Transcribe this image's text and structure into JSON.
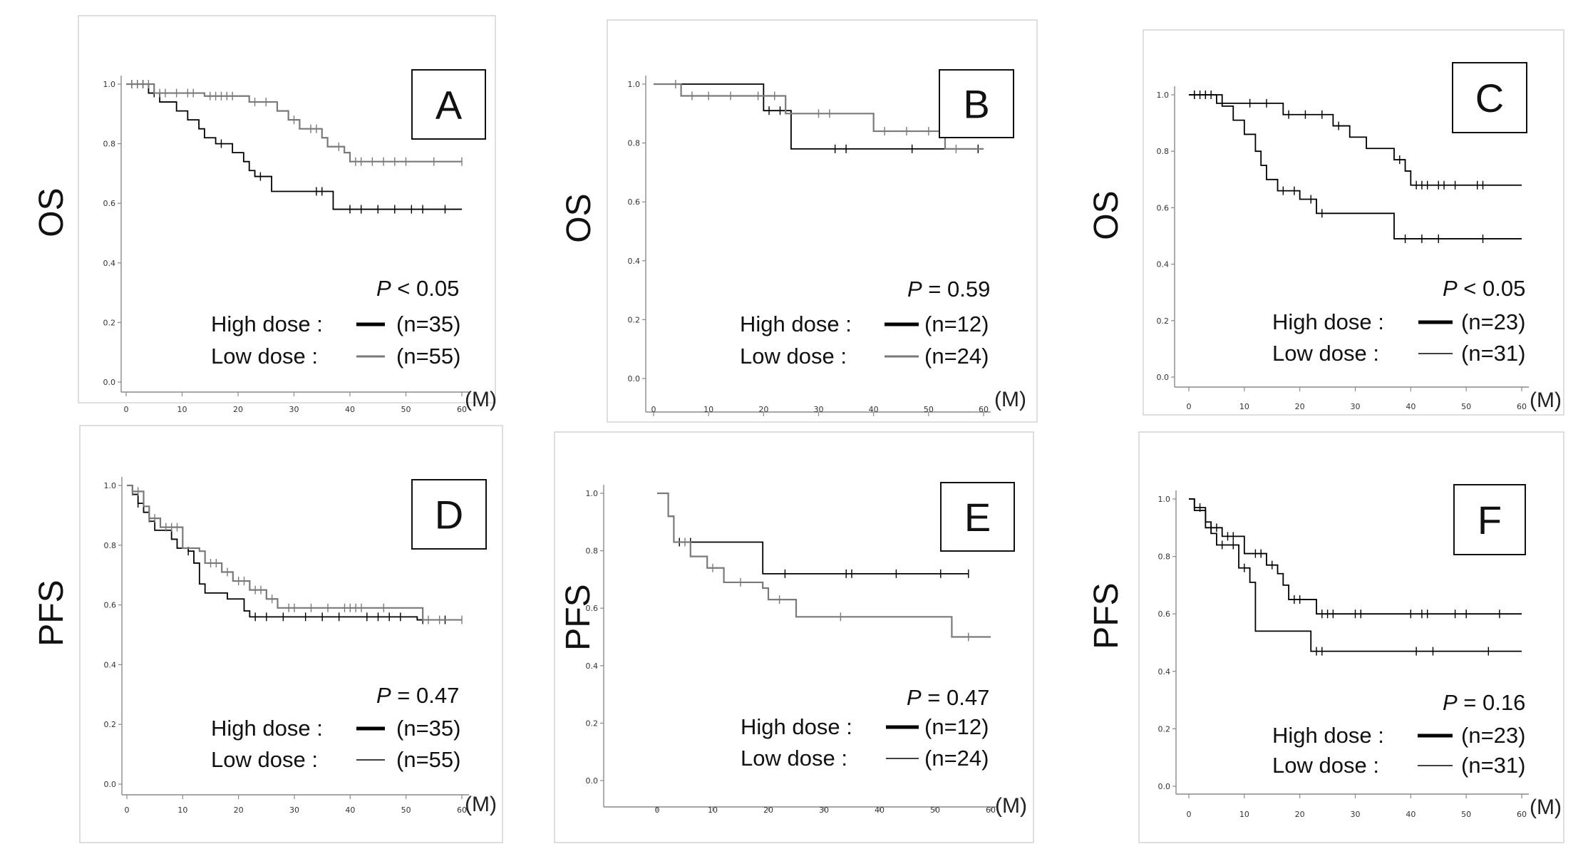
{
  "figure": {
    "panels": [
      {
        "letter": "A",
        "ylabel": "OS",
        "x_unit": "(M)",
        "p_symbol": "P",
        "p_rest": " < 0.05",
        "legend": [
          {
            "label": "High dose :",
            "count": "(n=35)",
            "color": "#000000",
            "width": 5
          },
          {
            "label": "Low dose  :",
            "count": "(n=55)",
            "color": "#7a7a7a",
            "width": 3
          }
        ]
      },
      {
        "letter": "B",
        "ylabel": "OS",
        "x_unit": "(M)",
        "p_symbol": "P",
        "p_rest": " = 0.59",
        "legend": [
          {
            "label": "High dose :",
            "count": "(n=12)",
            "color": "#000000",
            "width": 5
          },
          {
            "label": "Low dose  :",
            "count": "(n=24)",
            "color": "#7a7a7a",
            "width": 3
          }
        ]
      },
      {
        "letter": "C",
        "ylabel": "OS",
        "x_unit": "(M)",
        "p_symbol": "P",
        "p_rest": " < 0.05",
        "legend": [
          {
            "label": "High dose :",
            "count": "(n=23)",
            "color": "#000000",
            "width": 5
          },
          {
            "label": "Low dose  :",
            "count": "(n=31)",
            "color": "#000000",
            "width": 1.6
          }
        ]
      },
      {
        "letter": "D",
        "ylabel": "PFS",
        "x_unit": "(M)",
        "p_symbol": "P",
        "p_rest": " = 0.47",
        "legend": [
          {
            "label": "High dose :",
            "count": "(n=35)",
            "color": "#000000",
            "width": 5
          },
          {
            "label": "Low dose  :",
            "count": "(n=55)",
            "color": "#000000",
            "width": 1.6
          }
        ]
      },
      {
        "letter": "E",
        "ylabel": "PFS",
        "x_unit": "(M)",
        "p_symbol": "P",
        "p_rest": " = 0.47",
        "legend": [
          {
            "label": "High dose :",
            "count": "(n=12)",
            "color": "#000000",
            "width": 5
          },
          {
            "label": "Low dose  :",
            "count": "(n=24)",
            "color": "#000000",
            "width": 1.6
          }
        ]
      },
      {
        "letter": "F",
        "ylabel": "PFS",
        "x_unit": "(M)",
        "p_symbol": "P",
        "p_rest": " = 0.16",
        "legend": [
          {
            "label": "High dose :",
            "count": "(n=23)",
            "color": "#000000",
            "width": 5
          },
          {
            "label": "Low dose  :",
            "count": "(n=31)",
            "color": "#000000",
            "width": 1.6
          }
        ]
      }
    ]
  },
  "chart_data": [
    {
      "type": "line",
      "panel": "A",
      "ylabel": "OS",
      "xlabel": "(M)",
      "xlim": [
        0,
        60
      ],
      "ylim": [
        0,
        1
      ],
      "x_ticks": [
        0,
        10,
        20,
        30,
        40,
        50,
        60
      ],
      "y_ticks": [
        "0.0",
        "0.2",
        "0.4",
        "0.6",
        "0.8",
        "1.0"
      ],
      "annotation": "P < 0.05",
      "series": [
        {
          "name": "High dose (n=35)",
          "color": "#000000",
          "steps": [
            [
              0,
              1.0
            ],
            [
              4,
              0.97
            ],
            [
              6,
              0.94
            ],
            [
              9,
              0.91
            ],
            [
              11,
              0.88
            ],
            [
              13,
              0.85
            ],
            [
              14,
              0.82
            ],
            [
              16,
              0.8
            ],
            [
              19,
              0.77
            ],
            [
              21,
              0.74
            ],
            [
              22,
              0.71
            ],
            [
              23,
              0.69
            ],
            [
              26,
              0.64
            ],
            [
              37,
              0.58
            ],
            [
              60,
              0.58
            ]
          ],
          "censored": [
            1,
            2,
            3,
            5,
            17,
            24,
            34,
            35,
            40,
            42,
            45,
            48,
            51,
            53,
            57
          ]
        },
        {
          "name": "Low dose (n=55)",
          "color": "#7a7a7a",
          "steps": [
            [
              0,
              1.0
            ],
            [
              5,
              0.97
            ],
            [
              14,
              0.96
            ],
            [
              22,
              0.94
            ],
            [
              27,
              0.91
            ],
            [
              29,
              0.88
            ],
            [
              31,
              0.85
            ],
            [
              35,
              0.82
            ],
            [
              36,
              0.79
            ],
            [
              39,
              0.77
            ],
            [
              40,
              0.74
            ],
            [
              60,
              0.74
            ]
          ],
          "censored": [
            1,
            2,
            3,
            4,
            6,
            7,
            9,
            11,
            12,
            15,
            16,
            17,
            18,
            19,
            23,
            25,
            30,
            33,
            34,
            38,
            41,
            42,
            44,
            46,
            48,
            50,
            55,
            60
          ]
        }
      ]
    },
    {
      "type": "line",
      "panel": "B",
      "ylabel": "OS",
      "xlabel": "(M)",
      "xlim": [
        0,
        60
      ],
      "ylim": [
        0,
        1
      ],
      "x_ticks": [
        0,
        10,
        20,
        30,
        40,
        50,
        60
      ],
      "y_ticks": [
        "0.0",
        "0.2",
        "0.4",
        "0.6",
        "0.8",
        "1.0"
      ],
      "annotation": "P = 0.59",
      "series": [
        {
          "name": "High dose (n=12)",
          "color": "#000000",
          "steps": [
            [
              0,
              1.0
            ],
            [
              20,
              0.91
            ],
            [
              25,
              0.78
            ],
            [
              60,
              0.78
            ]
          ],
          "censored": [
            21,
            23,
            33,
            35,
            47,
            59
          ]
        },
        {
          "name": "Low dose (n=24)",
          "color": "#7a7a7a",
          "steps": [
            [
              0,
              1.0
            ],
            [
              5,
              0.96
            ],
            [
              24,
              0.9
            ],
            [
              40,
              0.84
            ],
            [
              53,
              0.78
            ],
            [
              60,
              0.78
            ]
          ],
          "censored": [
            4,
            7,
            10,
            14,
            19,
            22,
            30,
            32,
            42,
            46,
            50,
            55
          ]
        }
      ]
    },
    {
      "type": "line",
      "panel": "C",
      "ylabel": "OS",
      "xlabel": "(M)",
      "xlim": [
        0,
        60
      ],
      "ylim": [
        0,
        1
      ],
      "x_ticks": [
        0,
        10,
        20,
        30,
        40,
        50,
        60
      ],
      "y_ticks": [
        "0.0",
        "0.2",
        "0.4",
        "0.6",
        "0.8",
        "1.0"
      ],
      "annotation": "P < 0.05",
      "series": [
        {
          "name": "High dose (n=23)",
          "color": "#000000",
          "steps": [
            [
              0,
              1.0
            ],
            [
              6,
              0.96
            ],
            [
              8,
              0.91
            ],
            [
              10,
              0.86
            ],
            [
              12,
              0.8
            ],
            [
              13,
              0.75
            ],
            [
              14,
              0.7
            ],
            [
              16,
              0.66
            ],
            [
              20,
              0.63
            ],
            [
              23,
              0.58
            ],
            [
              37,
              0.49
            ],
            [
              60,
              0.49
            ]
          ],
          "censored": [
            1,
            2,
            3,
            17,
            19,
            22,
            24,
            39,
            42,
            45,
            53
          ]
        },
        {
          "name": "Low dose (n=31)",
          "color": "#000000",
          "steps": [
            [
              0,
              1.0
            ],
            [
              5,
              0.97
            ],
            [
              17,
              0.93
            ],
            [
              26,
              0.89
            ],
            [
              29,
              0.85
            ],
            [
              32,
              0.81
            ],
            [
              37,
              0.77
            ],
            [
              39,
              0.73
            ],
            [
              40,
              0.68
            ],
            [
              60,
              0.68
            ]
          ],
          "censored": [
            1,
            3,
            4,
            11,
            14,
            18,
            21,
            24,
            27,
            38,
            41,
            42,
            43,
            45,
            46,
            48,
            52,
            53
          ]
        }
      ]
    },
    {
      "type": "line",
      "panel": "D",
      "ylabel": "PFS",
      "xlabel": "(M)",
      "xlim": [
        0,
        60
      ],
      "ylim": [
        0,
        1
      ],
      "x_ticks": [
        0,
        10,
        20,
        30,
        40,
        50,
        60
      ],
      "y_ticks": [
        "0.0",
        "0.2",
        "0.4",
        "0.6",
        "0.8",
        "1.0"
      ],
      "annotation": "P = 0.47",
      "series": [
        {
          "name": "High dose (n=35)",
          "color": "#000000",
          "steps": [
            [
              0,
              1.0
            ],
            [
              1,
              0.97
            ],
            [
              2,
              0.94
            ],
            [
              3,
              0.91
            ],
            [
              4,
              0.88
            ],
            [
              5,
              0.85
            ],
            [
              8,
              0.82
            ],
            [
              9,
              0.79
            ],
            [
              11,
              0.78
            ],
            [
              12,
              0.74
            ],
            [
              13,
              0.67
            ],
            [
              14,
              0.64
            ],
            [
              18,
              0.62
            ],
            [
              21,
              0.58
            ],
            [
              22,
              0.56
            ],
            [
              52,
              0.55
            ],
            [
              60,
              0.55
            ]
          ],
          "censored": [
            2,
            11,
            23,
            25,
            28,
            32,
            35,
            38,
            43,
            45,
            47,
            49,
            53,
            57
          ]
        },
        {
          "name": "Low dose (n=55)",
          "color": "#7a7a7a",
          "steps": [
            [
              0,
              1.0
            ],
            [
              1,
              0.98
            ],
            [
              3,
              0.93
            ],
            [
              4,
              0.89
            ],
            [
              6,
              0.86
            ],
            [
              10,
              0.79
            ],
            [
              13,
              0.78
            ],
            [
              14,
              0.74
            ],
            [
              17,
              0.71
            ],
            [
              19,
              0.68
            ],
            [
              22,
              0.65
            ],
            [
              25,
              0.62
            ],
            [
              27,
              0.59
            ],
            [
              53,
              0.55
            ],
            [
              60,
              0.55
            ]
          ],
          "censored": [
            1,
            2,
            4,
            5,
            7,
            8,
            9,
            15,
            16,
            18,
            20,
            21,
            23,
            24,
            26,
            29,
            30,
            33,
            36,
            39,
            40,
            41,
            42,
            46,
            54,
            56,
            60
          ]
        }
      ]
    },
    {
      "type": "line",
      "panel": "E",
      "ylabel": "PFS",
      "xlabel": "(M)",
      "xlim": [
        0,
        60
      ],
      "ylim": [
        0,
        1
      ],
      "x_ticks": [
        0,
        10,
        20,
        30,
        40,
        50,
        60
      ],
      "y_ticks": [
        "0.0",
        "0.2",
        "0.4",
        "0.6",
        "0.8",
        "1.0"
      ],
      "annotation": "P = 0.47",
      "series": [
        {
          "name": "High dose (n=12)",
          "color": "#000000",
          "steps": [
            [
              0,
              1.0
            ],
            [
              2,
              0.92
            ],
            [
              3,
              0.83
            ],
            [
              19,
              0.72
            ],
            [
              56,
              0.72
            ]
          ],
          "censored": [
            4,
            6,
            23,
            34,
            35,
            43,
            51,
            56
          ]
        },
        {
          "name": "Low dose (n=24)",
          "color": "#7a7a7a",
          "steps": [
            [
              0,
              1.0
            ],
            [
              2,
              0.92
            ],
            [
              3,
              0.83
            ],
            [
              6,
              0.78
            ],
            [
              9,
              0.74
            ],
            [
              12,
              0.69
            ],
            [
              19,
              0.67
            ],
            [
              20,
              0.63
            ],
            [
              25,
              0.57
            ],
            [
              53,
              0.5
            ],
            [
              60,
              0.5
            ]
          ],
          "censored": [
            5,
            10,
            15,
            22,
            33,
            56
          ]
        }
      ]
    },
    {
      "type": "line",
      "panel": "F",
      "ylabel": "PFS",
      "xlabel": "(M)",
      "xlim": [
        0,
        60
      ],
      "ylim": [
        0,
        1
      ],
      "x_ticks": [
        0,
        10,
        20,
        30,
        40,
        50,
        60
      ],
      "y_ticks": [
        "0.0",
        "0.2",
        "0.4",
        "0.6",
        "0.8",
        "1.0"
      ],
      "annotation": "P = 0.16",
      "series": [
        {
          "name": "High dose (n=23)",
          "color": "#000000",
          "steps": [
            [
              0,
              1.0
            ],
            [
              1,
              0.96
            ],
            [
              3,
              0.92
            ],
            [
              4,
              0.88
            ],
            [
              5,
              0.84
            ],
            [
              9,
              0.76
            ],
            [
              11,
              0.71
            ],
            [
              12,
              0.54
            ],
            [
              22,
              0.47
            ],
            [
              60,
              0.47
            ]
          ],
          "censored": [
            6,
            8,
            10,
            23,
            24,
            41,
            44,
            54
          ]
        },
        {
          "name": "Low dose (n=31)",
          "color": "#000000",
          "steps": [
            [
              0,
              1.0
            ],
            [
              1,
              0.97
            ],
            [
              3,
              0.9
            ],
            [
              6,
              0.87
            ],
            [
              10,
              0.81
            ],
            [
              14,
              0.77
            ],
            [
              16,
              0.74
            ],
            [
              17,
              0.7
            ],
            [
              18,
              0.65
            ],
            [
              23,
              0.6
            ],
            [
              29,
              0.6
            ],
            [
              60,
              0.6
            ]
          ],
          "censored": [
            2,
            4,
            5,
            7,
            8,
            12,
            13,
            15,
            19,
            20,
            24,
            25,
            26,
            30,
            31,
            40,
            42,
            43,
            48,
            50,
            56
          ]
        }
      ]
    }
  ]
}
